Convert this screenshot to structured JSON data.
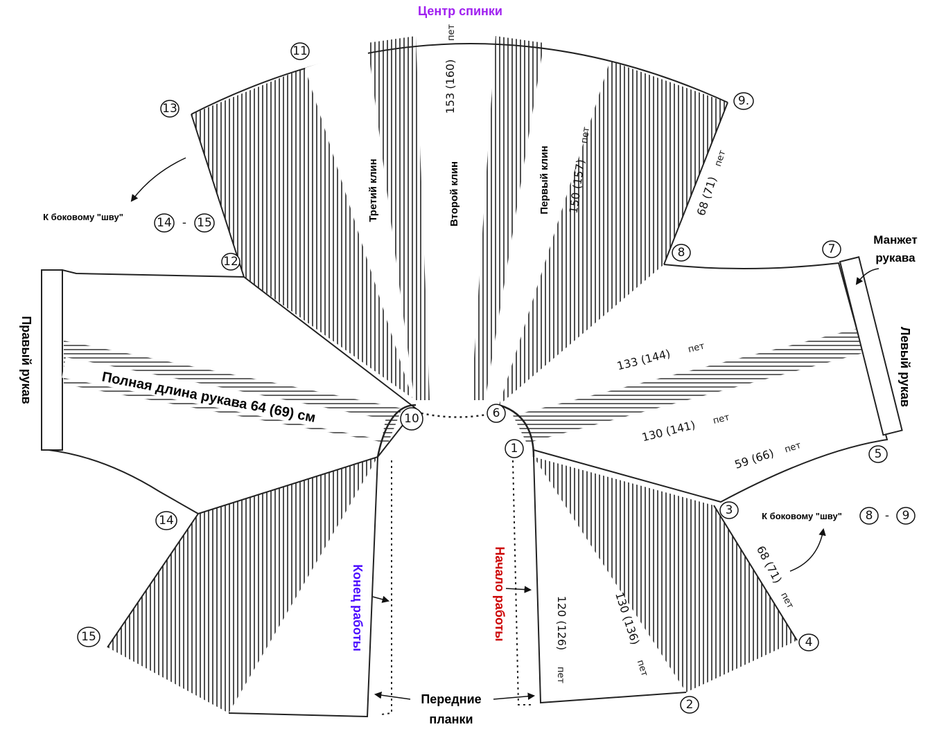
{
  "title": "Центр спинки",
  "colors": {
    "title": "#a020f0",
    "end": "#4b0aff",
    "start": "#cc0000",
    "ink": "#111111"
  },
  "wedges": {
    "third": "Третий клин",
    "second": "Второй клин",
    "first": "Первый клин"
  },
  "stitch_counts": {
    "second_wedge": "153 (160)",
    "first_wedge": "150 (157)",
    "top_right_edge": "68 (71)",
    "left_sleeve_top": "133 (144)",
    "left_sleeve_bottom": "130 (141)",
    "left_sleeve_edge": "59 (66)",
    "bottom_right_edge": "68 (71)",
    "front_right": "120 (126)",
    "front_right_panel": "130 (136)"
  },
  "unit": "пет",
  "sleeve_length": "Полная длина рукава 64 (69) см",
  "right_sleeve": "Правый рукав",
  "left_sleeve": "Левый рукав",
  "cuff": {
    "line1": "Манжет",
    "line2": "рукава"
  },
  "side_seam_left": {
    "text": "К боковому \"шву\"",
    "a": "14",
    "dash": "-",
    "b": "15"
  },
  "side_seam_right": {
    "text": "К боковому \"шву\"",
    "a": "8",
    "dash": "-",
    "b": "9"
  },
  "work_end": "Конец работы",
  "work_start": "Начало работы",
  "front_bands": {
    "line1": "Передние",
    "line2": "планки"
  },
  "points": {
    "p1": "1",
    "p2": "2",
    "p3": "3",
    "p4": "4",
    "p5": "5",
    "p6": "6",
    "p7": "7",
    "p8": "8",
    "p9": "9.",
    "p10": "10",
    "p11": "11",
    "p12": "12",
    "p13": "13",
    "p14": "14",
    "p15": "15"
  }
}
